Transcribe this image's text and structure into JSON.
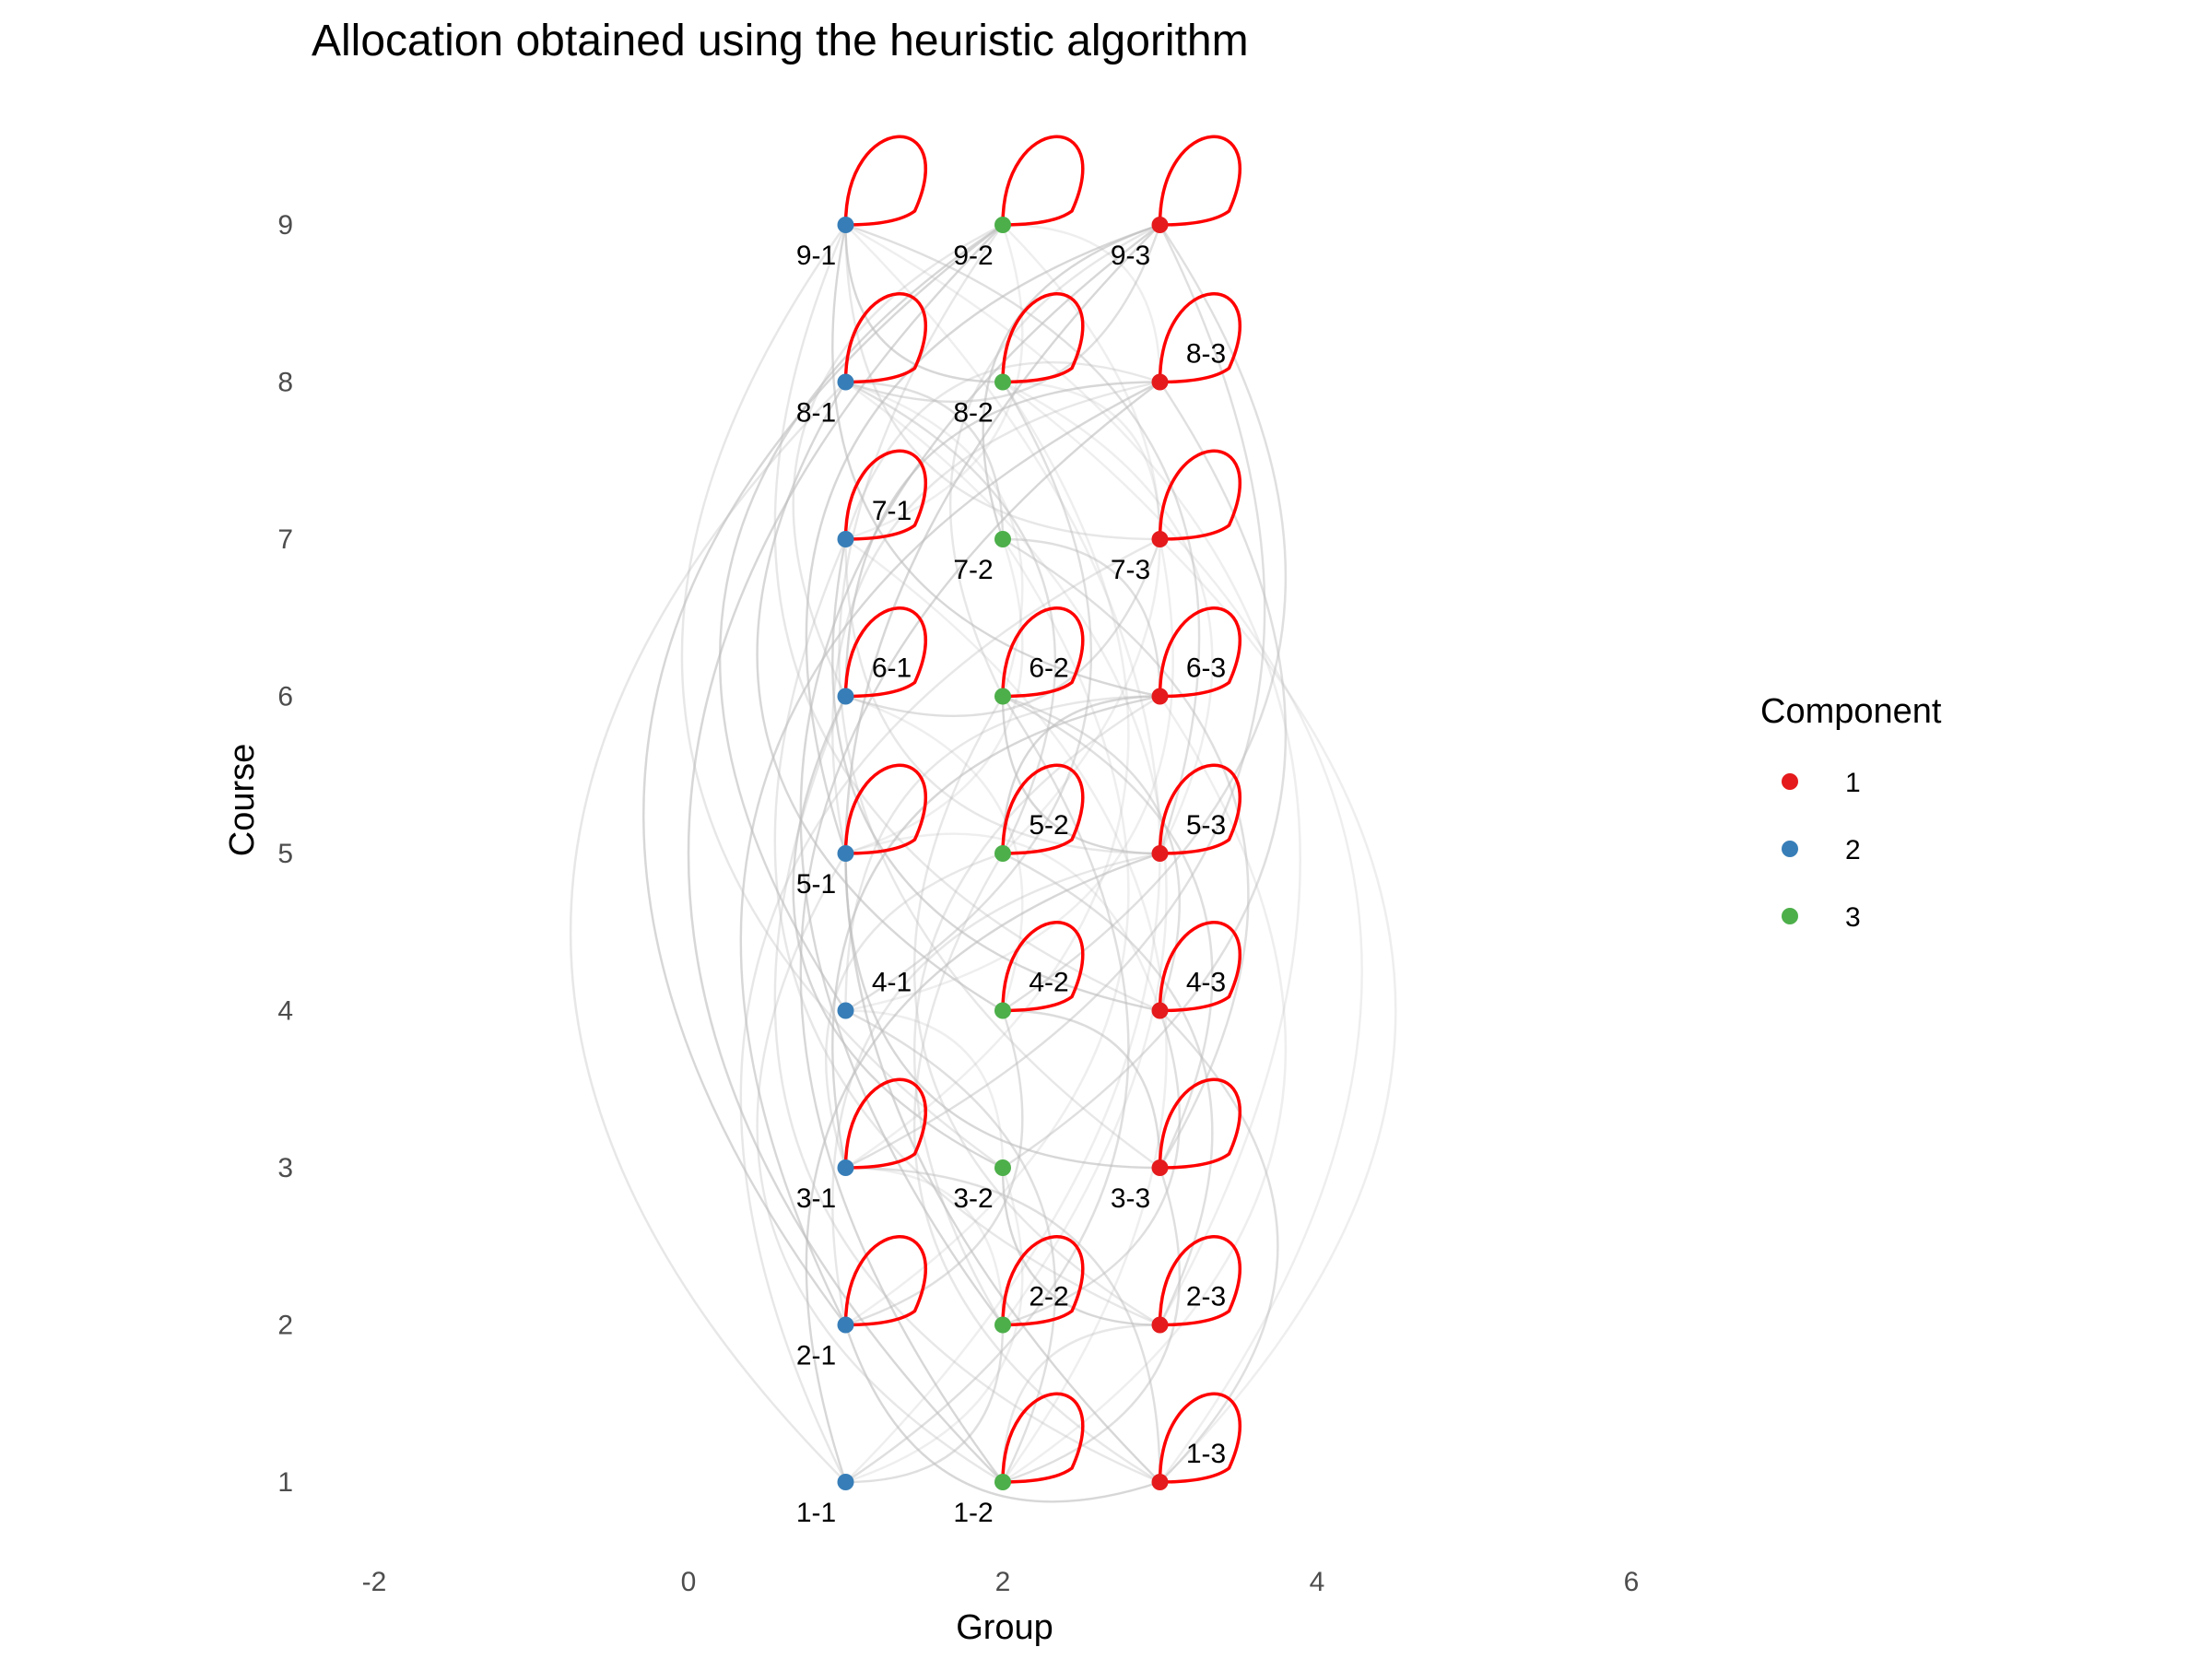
{
  "chart_data": {
    "type": "network",
    "title": "Allocation obtained using the heuristic algorithm",
    "xlabel": "Group",
    "ylabel": "Course",
    "xlim": [
      -2,
      6
    ],
    "ylim": [
      1,
      9
    ],
    "x_ticks": [
      "-2",
      "0",
      "2",
      "4",
      "6"
    ],
    "y_ticks": [
      "1",
      "2",
      "3",
      "4",
      "5",
      "6",
      "7",
      "8",
      "9"
    ],
    "legend": {
      "title": "Component",
      "position": "right",
      "entries": [
        {
          "label": "1",
          "color": "#e41a1c"
        },
        {
          "label": "2",
          "color": "#377eb8"
        },
        {
          "label": "3",
          "color": "#4daf4a"
        }
      ]
    },
    "loop_color": "#ff0000",
    "edge_color": "#bdbdbd",
    "nodes": [
      {
        "id": "1-1",
        "x": 1,
        "y": 1,
        "component": 2,
        "loop": false
      },
      {
        "id": "1-2",
        "x": 2,
        "y": 1,
        "component": 3,
        "loop": true
      },
      {
        "id": "1-3",
        "x": 3,
        "y": 1,
        "component": 1,
        "loop": true
      },
      {
        "id": "2-1",
        "x": 1,
        "y": 2,
        "component": 2,
        "loop": true
      },
      {
        "id": "2-2",
        "x": 2,
        "y": 2,
        "component": 3,
        "loop": true
      },
      {
        "id": "2-3",
        "x": 3,
        "y": 2,
        "component": 1,
        "loop": true
      },
      {
        "id": "3-1",
        "x": 1,
        "y": 3,
        "component": 2,
        "loop": true
      },
      {
        "id": "3-2",
        "x": 2,
        "y": 3,
        "component": 3,
        "loop": false
      },
      {
        "id": "3-3",
        "x": 3,
        "y": 3,
        "component": 1,
        "loop": true
      },
      {
        "id": "4-1",
        "x": 1,
        "y": 4,
        "component": 2,
        "loop": false
      },
      {
        "id": "4-2",
        "x": 2,
        "y": 4,
        "component": 3,
        "loop": true
      },
      {
        "id": "4-3",
        "x": 3,
        "y": 4,
        "component": 1,
        "loop": true
      },
      {
        "id": "5-1",
        "x": 1,
        "y": 5,
        "component": 2,
        "loop": true
      },
      {
        "id": "5-2",
        "x": 2,
        "y": 5,
        "component": 3,
        "loop": true
      },
      {
        "id": "5-3",
        "x": 3,
        "y": 5,
        "component": 1,
        "loop": true
      },
      {
        "id": "6-1",
        "x": 1,
        "y": 6,
        "component": 2,
        "loop": true
      },
      {
        "id": "6-2",
        "x": 2,
        "y": 6,
        "component": 3,
        "loop": true
      },
      {
        "id": "6-3",
        "x": 3,
        "y": 6,
        "component": 1,
        "loop": true
      },
      {
        "id": "7-1",
        "x": 1,
        "y": 7,
        "component": 2,
        "loop": true
      },
      {
        "id": "7-2",
        "x": 2,
        "y": 7,
        "component": 3,
        "loop": false
      },
      {
        "id": "7-3",
        "x": 3,
        "y": 7,
        "component": 1,
        "loop": true
      },
      {
        "id": "8-1",
        "x": 1,
        "y": 8,
        "component": 2,
        "loop": true
      },
      {
        "id": "8-2",
        "x": 2,
        "y": 8,
        "component": 3,
        "loop": true
      },
      {
        "id": "8-3",
        "x": 3,
        "y": 8,
        "component": 1,
        "loop": true
      },
      {
        "id": "9-1",
        "x": 1,
        "y": 9,
        "component": 2,
        "loop": true
      },
      {
        "id": "9-2",
        "x": 2,
        "y": 9,
        "component": 3,
        "loop": true
      },
      {
        "id": "9-3",
        "x": 3,
        "y": 9,
        "component": 1,
        "loop": true
      }
    ],
    "edges": [
      [
        "1-1",
        "9-1"
      ],
      [
        "1-1",
        "8-1"
      ],
      [
        "1-1",
        "6-2"
      ],
      [
        "1-1",
        "5-3"
      ],
      [
        "1-1",
        "3-2"
      ],
      [
        "1-1",
        "7-3"
      ],
      [
        "1-1",
        "2-2"
      ],
      [
        "1-2",
        "9-2"
      ],
      [
        "1-2",
        "7-1"
      ],
      [
        "1-2",
        "5-1"
      ],
      [
        "1-2",
        "3-3"
      ],
      [
        "1-2",
        "8-3"
      ],
      [
        "1-2",
        "6-3"
      ],
      [
        "1-2",
        "2-3"
      ],
      [
        "1-2",
        "4-1"
      ],
      [
        "1-3",
        "9-3"
      ],
      [
        "1-3",
        "7-3"
      ],
      [
        "1-3",
        "5-2"
      ],
      [
        "1-3",
        "4-3"
      ],
      [
        "1-3",
        "2-1"
      ],
      [
        "1-3",
        "8-2"
      ],
      [
        "1-3",
        "6-1"
      ],
      [
        "1-3",
        "3-1"
      ],
      [
        "2-1",
        "9-2"
      ],
      [
        "2-1",
        "7-2"
      ],
      [
        "2-1",
        "5-3"
      ],
      [
        "2-1",
        "4-2"
      ],
      [
        "2-1",
        "8-3"
      ],
      [
        "2-2",
        "8-1"
      ],
      [
        "2-2",
        "6-3"
      ],
      [
        "2-2",
        "4-3"
      ],
      [
        "2-2",
        "9-3"
      ],
      [
        "2-2",
        "3-1"
      ],
      [
        "2-3",
        "7-1"
      ],
      [
        "2-3",
        "5-2"
      ],
      [
        "2-3",
        "3-2"
      ],
      [
        "2-3",
        "9-1"
      ],
      [
        "2-3",
        "6-2"
      ],
      [
        "3-1",
        "9-3"
      ],
      [
        "3-1",
        "6-3"
      ],
      [
        "3-1",
        "8-2"
      ],
      [
        "3-1",
        "5-2"
      ],
      [
        "3-2",
        "8-3"
      ],
      [
        "3-2",
        "6-1"
      ],
      [
        "3-2",
        "4-1"
      ],
      [
        "3-2",
        "9-1"
      ],
      [
        "3-3",
        "7-2"
      ],
      [
        "3-3",
        "5-1"
      ],
      [
        "3-3",
        "4-2"
      ],
      [
        "3-3",
        "9-2"
      ],
      [
        "3-3",
        "6-2"
      ],
      [
        "4-1",
        "9-2"
      ],
      [
        "4-1",
        "7-3"
      ],
      [
        "4-1",
        "6-3"
      ],
      [
        "4-1",
        "8-2"
      ],
      [
        "4-2",
        "8-1"
      ],
      [
        "4-2",
        "6-1"
      ],
      [
        "4-2",
        "3-3"
      ],
      [
        "4-2",
        "9-3"
      ],
      [
        "4-3",
        "7-1"
      ],
      [
        "4-3",
        "5-1"
      ],
      [
        "4-3",
        "9-1"
      ],
      [
        "4-3",
        "6-2"
      ],
      [
        "5-1",
        "9-3"
      ],
      [
        "5-1",
        "7-2"
      ],
      [
        "5-1",
        "8-3"
      ],
      [
        "5-2",
        "8-1"
      ],
      [
        "5-2",
        "6-3"
      ],
      [
        "5-2",
        "9-2"
      ],
      [
        "5-3",
        "7-1"
      ],
      [
        "5-3",
        "9-1"
      ],
      [
        "5-3",
        "6-2"
      ],
      [
        "5-3",
        "8-2"
      ],
      [
        "6-1",
        "9-2"
      ],
      [
        "6-1",
        "7-3"
      ],
      [
        "6-1",
        "8-3"
      ],
      [
        "6-2",
        "8-1"
      ],
      [
        "6-2",
        "9-3"
      ],
      [
        "6-3",
        "7-2"
      ],
      [
        "6-3",
        "9-1"
      ],
      [
        "7-1",
        "9-2"
      ],
      [
        "7-1",
        "8-3"
      ],
      [
        "7-2",
        "8-1"
      ],
      [
        "7-2",
        "9-3"
      ],
      [
        "7-3",
        "8-2"
      ],
      [
        "7-3",
        "9-1"
      ],
      [
        "8-1",
        "9-3"
      ],
      [
        "8-2",
        "9-1"
      ],
      [
        "8-3",
        "9-2"
      ]
    ]
  }
}
